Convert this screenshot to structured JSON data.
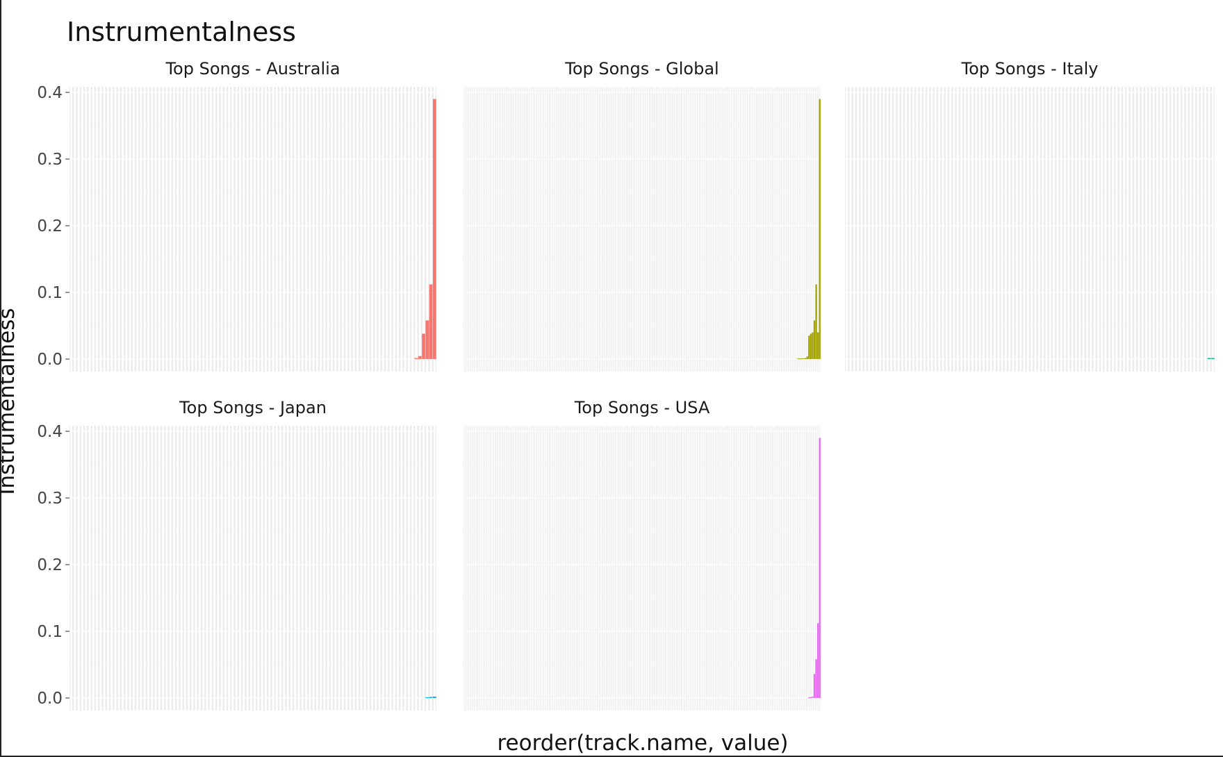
{
  "chart_data": {
    "type": "bar",
    "title": "Instrumentalness",
    "xlabel": "reorder(track.name, value)",
    "ylabel": "Instrumentalness",
    "ylim": [
      0,
      0.4
    ],
    "yticks": [
      "0.0",
      "0.1",
      "0.2",
      "0.3",
      "0.4"
    ],
    "grid": true,
    "legend": "none",
    "facets": [
      {
        "name": "Top Songs - Australia",
        "color": "#F8766D",
        "n": 100,
        "values": [
          0.0015,
          0.0045,
          0.038,
          0.058,
          0.112,
          0.39
        ]
      },
      {
        "name": "Top Songs - Global",
        "color": "#A3A500",
        "n": 200,
        "values": [
          0.001,
          0.001,
          0.001,
          0.0012,
          0.0015,
          0.004,
          0.035,
          0.038,
          0.04,
          0.058,
          0.112,
          0.04,
          0.39
        ]
      },
      {
        "name": "Top Songs - Italy",
        "color": "#00BF7D",
        "n": 100,
        "values": [
          0.0015,
          0.0015
        ]
      },
      {
        "name": "Top Songs - Japan",
        "color": "#00B0F6",
        "n": 100,
        "values": [
          0.001,
          0.0015,
          0.002
        ]
      },
      {
        "name": "Top Songs - USA",
        "color": "#E76BF3",
        "n": 200,
        "values": [
          0.001,
          0.0015,
          0.002,
          0.036,
          0.058,
          0.112,
          0.39
        ]
      }
    ]
  }
}
